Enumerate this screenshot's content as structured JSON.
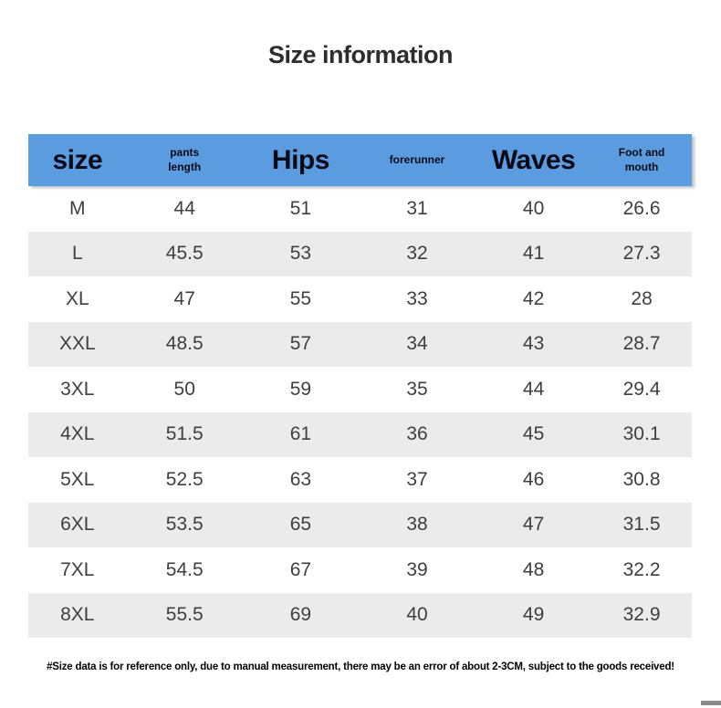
{
  "page": {
    "title": "Size information",
    "footnote": "#Size data is for reference only, due to manual measurement, there may be an error of about 2-3CM, subject to the goods received!"
  },
  "colors": {
    "header_bg": "#5b9ce1",
    "alt_row_bg": "#ebebeb",
    "header_text": "#0a0a14",
    "body_text": "#3f3f3f",
    "title_text": "#2d2d2d",
    "scrollbar": "#8a8a8a"
  },
  "table": {
    "columns": [
      {
        "label": "size",
        "style": "large"
      },
      {
        "label": "pants length",
        "style": "small"
      },
      {
        "label": "Hips",
        "style": "large"
      },
      {
        "label": "forerunner",
        "style": "small"
      },
      {
        "label": "Waves",
        "style": "large"
      },
      {
        "label": "Foot and mouth",
        "style": "small"
      }
    ],
    "rows": [
      [
        "M",
        "44",
        "51",
        "31",
        "40",
        "26.6"
      ],
      [
        "L",
        "45.5",
        "53",
        "32",
        "41",
        "27.3"
      ],
      [
        "XL",
        "47",
        "55",
        "33",
        "42",
        "28"
      ],
      [
        "XXL",
        "48.5",
        "57",
        "34",
        "43",
        "28.7"
      ],
      [
        "3XL",
        "50",
        "59",
        "35",
        "44",
        "29.4"
      ],
      [
        "4XL",
        "51.5",
        "61",
        "36",
        "45",
        "30.1"
      ],
      [
        "5XL",
        "52.5",
        "63",
        "37",
        "46",
        "30.8"
      ],
      [
        "6XL",
        "53.5",
        "65",
        "38",
        "47",
        "31.5"
      ],
      [
        "7XL",
        "54.5",
        "67",
        "39",
        "48",
        "32.2"
      ],
      [
        "8XL",
        "55.5",
        "69",
        "40",
        "49",
        "32.9"
      ]
    ]
  },
  "chart_data": {
    "type": "table",
    "title": "Size information",
    "columns": [
      "size",
      "pants length",
      "Hips",
      "forerunner",
      "Waves",
      "Foot and mouth"
    ],
    "rows": [
      [
        "M",
        44,
        51,
        31,
        40,
        26.6
      ],
      [
        "L",
        45.5,
        53,
        32,
        41,
        27.3
      ],
      [
        "XL",
        47,
        55,
        33,
        42,
        28
      ],
      [
        "XXL",
        48.5,
        57,
        34,
        43,
        28.7
      ],
      [
        "3XL",
        50,
        59,
        35,
        44,
        29.4
      ],
      [
        "4XL",
        51.5,
        61,
        36,
        45,
        30.1
      ],
      [
        "5XL",
        52.5,
        63,
        37,
        46,
        30.8
      ],
      [
        "6XL",
        53.5,
        65,
        38,
        47,
        31.5
      ],
      [
        "7XL",
        54.5,
        67,
        39,
        48,
        32.2
      ],
      [
        "8XL",
        55.5,
        69,
        40,
        49,
        32.9
      ]
    ],
    "footnote": "#Size data is for reference only, due to manual measurement, there may be an error of about 2-3CM, subject to the goods received!",
    "layout": {
      "header_bg": "#5b9ce1",
      "alternating_rows": true,
      "first_row_bg": "#ffffff",
      "alt_row_bg": "#ebebeb"
    }
  }
}
